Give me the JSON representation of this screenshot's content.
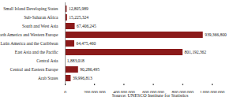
{
  "chart_data": {
    "type": "bar",
    "orientation": "horizontal",
    "categories": [
      "Small Island Developing States",
      "Sub-Saharan Africa",
      "South and West Asia",
      "North America and Western Europe",
      "Latin America and the Caribbean",
      "East Asia and the Pacific",
      "Central Asia",
      "Central and Eastern Europe",
      "Arab States"
    ],
    "values": [
      12805989,
      15225324,
      67406245,
      939366800,
      64475460,
      801192362,
      1883018,
      90286495,
      39996813
    ],
    "value_labels": [
      "12,805,989",
      "15,225,324",
      "67,406,245",
      "939,366,800",
      "64,475,460",
      "801,192,362",
      "1,883,018",
      "90,286,495",
      "39,996,813"
    ],
    "data_labels": true,
    "color": "#8b1a1a",
    "xlim": [
      0,
      1000000000
    ],
    "xticks": [
      {
        "value": 0,
        "label": "0"
      },
      {
        "value": 200000000,
        "label": "200,000,000"
      },
      {
        "value": 400000000,
        "label": "400,000,000"
      },
      {
        "value": 600000000,
        "label": "600,000,000"
      },
      {
        "value": 800000000,
        "label": "800,000,000"
      },
      {
        "value": 1000000000,
        "label": "1,000,000,000"
      }
    ],
    "grid": false,
    "annotations": [
      "Source: UNESCO Institute for Statistics"
    ]
  }
}
